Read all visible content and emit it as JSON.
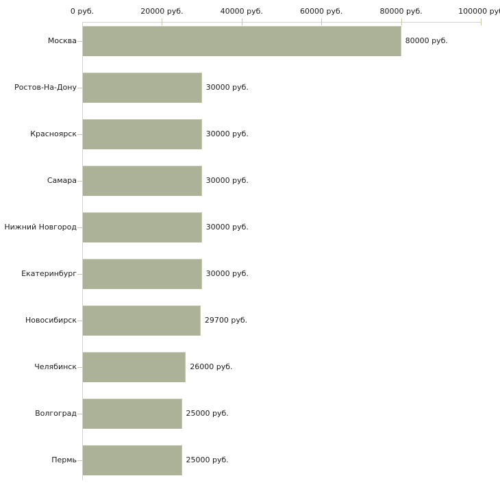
{
  "chart_data": {
    "type": "bar",
    "orientation": "horizontal",
    "title": "",
    "xlabel": "",
    "ylabel": "",
    "xlim": [
      0,
      100000
    ],
    "grid": false,
    "legend": false,
    "axis_position": "top",
    "x_ticks": [
      {
        "value": 0,
        "label": "0 руб."
      },
      {
        "value": 20000,
        "label": "20000 руб."
      },
      {
        "value": 40000,
        "label": "40000 руб."
      },
      {
        "value": 60000,
        "label": "60000 руб."
      },
      {
        "value": 80000,
        "label": "80000 руб."
      },
      {
        "value": 100000,
        "label": "100000 руб"
      }
    ],
    "categories": [
      "Москва",
      "Ростов-На-Дону",
      "Красноярск",
      "Самара",
      "Нижний Новгород",
      "Екатеринбург",
      "Новосибирск",
      "Челябинск",
      "Волгоград",
      "Пермь"
    ],
    "values": [
      80000,
      30000,
      30000,
      30000,
      30000,
      30000,
      29700,
      26000,
      25000,
      25000
    ],
    "value_labels": [
      "80000 руб.",
      "30000 руб.",
      "30000 руб.",
      "30000 руб.",
      "30000 руб.",
      "30000 руб.",
      "29700 руб.",
      "26000 руб.",
      "25000 руб.",
      "25000 руб."
    ],
    "colors": {
      "bar": "#abb297",
      "bar_edge": "#c2c8ae",
      "axis_line": "#d2d2d2",
      "tick_mark": "#c6c6a4",
      "text": "#1a1a1a",
      "background": "#ffffff"
    }
  }
}
